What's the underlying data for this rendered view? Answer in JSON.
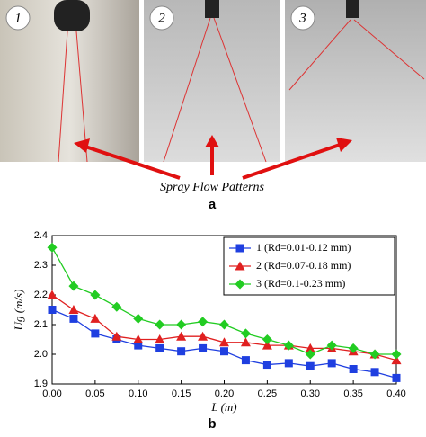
{
  "figure": {
    "panel_labels": [
      "1",
      "2",
      "3"
    ],
    "caption": "Spray Flow Patterns",
    "part_a": "a",
    "part_b": "b"
  },
  "chart_data": {
    "type": "line",
    "xlabel": "L (m)",
    "ylabel": "Ug (m/s)",
    "x": [
      0,
      0.025,
      0.05,
      0.075,
      0.1,
      0.125,
      0.15,
      0.175,
      0.2,
      0.225,
      0.25,
      0.275,
      0.3,
      0.325,
      0.35,
      0.375,
      0.4
    ],
    "series": [
      {
        "name": "1 (Rd=0.01-0.12 mm)",
        "color": "#1f3fe0",
        "marker": "square",
        "values": [
          2.15,
          2.12,
          2.07,
          2.05,
          2.03,
          2.02,
          2.01,
          2.02,
          2.01,
          1.98,
          1.965,
          1.97,
          1.96,
          1.97,
          1.95,
          1.94,
          1.92
        ]
      },
      {
        "name": "2 (Rd=0.07-0.18 mm)",
        "color": "#e02020",
        "marker": "triangle",
        "values": [
          2.2,
          2.15,
          2.12,
          2.06,
          2.05,
          2.05,
          2.06,
          2.06,
          2.04,
          2.04,
          2.03,
          2.03,
          2.02,
          2.02,
          2.01,
          2.0,
          1.98
        ]
      },
      {
        "name": "3 (Rd=0.1-0.23 mm)",
        "color": "#22cc22",
        "marker": "diamond",
        "values": [
          2.36,
          2.23,
          2.2,
          2.16,
          2.12,
          2.1,
          2.1,
          2.11,
          2.1,
          2.07,
          2.05,
          2.03,
          2.0,
          2.03,
          2.02,
          2.0,
          2.0
        ]
      }
    ],
    "xlim": [
      0,
      0.4
    ],
    "xticks": [
      {
        "value": 0,
        "label": "0.00"
      },
      0.05,
      {
        "value": 0.1,
        "label": "0.10"
      },
      0.15,
      {
        "value": 0.2,
        "label": "0.20"
      },
      0.25,
      {
        "value": 0.3,
        "label": "0.30"
      },
      0.35,
      {
        "value": 0.4,
        "label": "0.40"
      }
    ],
    "ylim": [
      1.9,
      2.4
    ],
    "yticks": [
      1.9,
      {
        "value": 2,
        "label": "2.0"
      },
      2.1,
      2.2,
      2.3,
      2.4
    ],
    "legend": "upper right",
    "grid": false
  }
}
